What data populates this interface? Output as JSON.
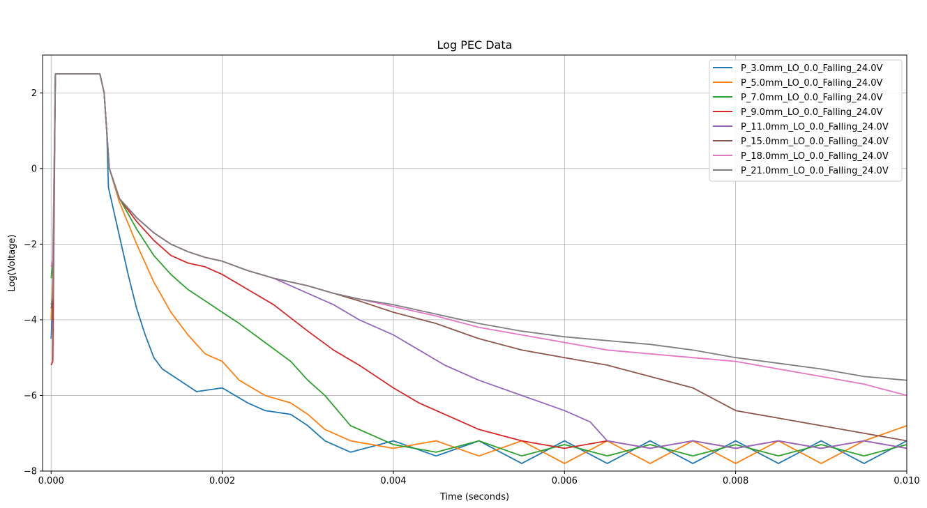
{
  "chart_data": {
    "type": "line",
    "title": "Log PEC Data",
    "xlabel": "Time (seconds)",
    "ylabel": "Log(Voltage)",
    "xlim": [
      -0.0001,
      0.01
    ],
    "ylim": [
      -8,
      3.0
    ],
    "xticks": [
      0.0,
      0.002,
      0.004,
      0.006,
      0.008,
      0.01
    ],
    "xtick_labels": [
      "0.000",
      "0.002",
      "0.004",
      "0.006",
      "0.008",
      "0.010"
    ],
    "yticks": [
      -8,
      -6,
      -4,
      -2,
      0,
      2
    ],
    "ytick_labels": [
      "−8",
      "−6",
      "−4",
      "−2",
      "0",
      "2"
    ],
    "grid": true,
    "legend_position": "top-right",
    "series": [
      {
        "name": "P_3.0mm_LO_0.0_Falling_24.0V",
        "color": "#1f77b4",
        "x": [
          0,
          2e-05,
          5e-05,
          0.0003,
          0.00057,
          0.00062,
          0.00065,
          0.00067,
          0.0007,
          0.0008,
          0.0009,
          0.001,
          0.0011,
          0.0012,
          0.0013,
          0.0015,
          0.0017,
          0.002,
          0.0023,
          0.0025,
          0.0028,
          0.003,
          0.0032,
          0.0035,
          0.004,
          0.0045,
          0.005,
          0.0055,
          0.006,
          0.0065,
          0.007,
          0.0075,
          0.008,
          0.0085,
          0.009,
          0.0095,
          0.01
        ],
        "y": [
          -4.5,
          -3.5,
          2.5,
          2.5,
          2.5,
          2.0,
          1.0,
          -0.5,
          -0.8,
          -1.8,
          -2.8,
          -3.7,
          -4.4,
          -5.0,
          -5.3,
          -5.6,
          -5.9,
          -5.8,
          -6.2,
          -6.4,
          -6.5,
          -6.8,
          -7.2,
          -7.5,
          -7.2,
          -7.6,
          -7.2,
          -7.8,
          -7.2,
          -7.8,
          -7.2,
          -7.8,
          -7.2,
          -7.8,
          -7.2,
          -7.8,
          -7.2
        ]
      },
      {
        "name": "P_5.0mm_LO_0.0_Falling_24.0V",
        "color": "#ff7f0e",
        "x": [
          0,
          2e-05,
          5e-05,
          0.0003,
          0.00057,
          0.00062,
          0.00065,
          0.00068,
          0.0008,
          0.001,
          0.0012,
          0.0014,
          0.0016,
          0.0018,
          0.002,
          0.0022,
          0.0025,
          0.0028,
          0.003,
          0.0032,
          0.0035,
          0.004,
          0.0045,
          0.005,
          0.0055,
          0.006,
          0.0065,
          0.007,
          0.0075,
          0.008,
          0.0085,
          0.009,
          0.0095,
          0.01
        ],
        "y": [
          -4.0,
          -3.0,
          2.5,
          2.5,
          2.5,
          2.0,
          1.0,
          0.0,
          -0.9,
          -2.0,
          -3.0,
          -3.8,
          -4.4,
          -4.9,
          -5.1,
          -5.6,
          -6.0,
          -6.2,
          -6.5,
          -6.9,
          -7.2,
          -7.4,
          -7.2,
          -7.6,
          -7.2,
          -7.8,
          -7.2,
          -7.8,
          -7.2,
          -7.8,
          -7.2,
          -7.8,
          -7.2,
          -6.8
        ]
      },
      {
        "name": "P_7.0mm_LO_0.0_Falling_24.0V",
        "color": "#2ca02c",
        "x": [
          0,
          2e-05,
          5e-05,
          0.0003,
          0.00057,
          0.00062,
          0.00065,
          0.00068,
          0.0008,
          0.001,
          0.0012,
          0.0014,
          0.0016,
          0.0018,
          0.002,
          0.0022,
          0.0025,
          0.0028,
          0.003,
          0.0032,
          0.0035,
          0.004,
          0.0045,
          0.005,
          0.0055,
          0.006,
          0.0065,
          0.007,
          0.0075,
          0.008,
          0.0085,
          0.009,
          0.0095,
          0.01
        ],
        "y": [
          -2.9,
          -2.5,
          2.5,
          2.5,
          2.5,
          2.0,
          1.0,
          0.0,
          -0.8,
          -1.6,
          -2.3,
          -2.8,
          -3.2,
          -3.5,
          -3.8,
          -4.1,
          -4.6,
          -5.1,
          -5.6,
          -6.0,
          -6.8,
          -7.3,
          -7.5,
          -7.2,
          -7.6,
          -7.3,
          -7.6,
          -7.3,
          -7.6,
          -7.3,
          -7.6,
          -7.3,
          -7.6,
          -7.3
        ]
      },
      {
        "name": "P_9.0mm_LO_0.0_Falling_24.0V",
        "color": "#d62728",
        "x": [
          0,
          2e-05,
          5e-05,
          0.0003,
          0.00057,
          0.00062,
          0.00065,
          0.00068,
          0.0008,
          0.001,
          0.0012,
          0.0014,
          0.0016,
          0.0018,
          0.002,
          0.0023,
          0.0026,
          0.003,
          0.0033,
          0.0036,
          0.004,
          0.0043,
          0.0046,
          0.005,
          0.0055,
          0.006,
          0.0065,
          0.007,
          0.0075,
          0.008,
          0.0085,
          0.009,
          0.0095,
          0.01
        ],
        "y": [
          -5.2,
          -5.1,
          2.5,
          2.5,
          2.5,
          2.0,
          1.0,
          0.0,
          -0.8,
          -1.4,
          -1.9,
          -2.3,
          -2.5,
          -2.6,
          -2.8,
          -3.2,
          -3.6,
          -4.3,
          -4.8,
          -5.2,
          -5.8,
          -6.2,
          -6.5,
          -6.9,
          -7.2,
          -7.4,
          -7.2,
          -7.4,
          -7.2,
          -7.4,
          -7.2,
          -7.4,
          -7.2,
          -7.4
        ]
      },
      {
        "name": "P_11.0mm_LO_0.0_Falling_24.0V",
        "color": "#9467bd",
        "x": [
          0,
          2e-05,
          5e-05,
          0.0003,
          0.00057,
          0.00062,
          0.00065,
          0.00068,
          0.0008,
          0.001,
          0.0012,
          0.0014,
          0.0016,
          0.0018,
          0.002,
          0.0023,
          0.0026,
          0.003,
          0.0033,
          0.0036,
          0.004,
          0.0043,
          0.0046,
          0.005,
          0.0055,
          0.006,
          0.0063,
          0.0065,
          0.007,
          0.0075,
          0.008,
          0.0085,
          0.009,
          0.0095,
          0.01
        ],
        "y": [
          -3.7,
          -3.5,
          2.5,
          2.5,
          2.5,
          2.0,
          1.0,
          0.0,
          -0.8,
          -1.3,
          -1.7,
          -2.0,
          -2.2,
          -2.35,
          -2.45,
          -2.7,
          -2.9,
          -3.3,
          -3.6,
          -4.0,
          -4.4,
          -4.8,
          -5.2,
          -5.6,
          -6.0,
          -6.4,
          -6.7,
          -7.2,
          -7.4,
          -7.2,
          -7.4,
          -7.2,
          -7.4,
          -7.2,
          -7.4
        ]
      },
      {
        "name": "P_15.0mm_LO_0.0_Falling_24.0V",
        "color": "#8c564b",
        "x": [
          0,
          2e-05,
          5e-05,
          0.0003,
          0.00057,
          0.00062,
          0.00065,
          0.00068,
          0.0008,
          0.001,
          0.0012,
          0.0014,
          0.0016,
          0.0018,
          0.002,
          0.0023,
          0.0026,
          0.003,
          0.0033,
          0.0036,
          0.004,
          0.0045,
          0.005,
          0.0055,
          0.006,
          0.0065,
          0.007,
          0.0075,
          0.008,
          0.0085,
          0.009,
          0.0095,
          0.01
        ],
        "y": [
          -3.7,
          -3.5,
          2.5,
          2.5,
          2.5,
          2.0,
          1.0,
          0.0,
          -0.8,
          -1.3,
          -1.7,
          -2.0,
          -2.2,
          -2.35,
          -2.45,
          -2.7,
          -2.9,
          -3.1,
          -3.3,
          -3.5,
          -3.8,
          -4.1,
          -4.5,
          -4.8,
          -5.0,
          -5.2,
          -5.5,
          -5.8,
          -6.4,
          -6.6,
          -6.8,
          -7.0,
          -7.2
        ]
      },
      {
        "name": "P_18.0mm_LO_0.0_Falling_24.0V",
        "color": "#e377c2",
        "x": [
          0,
          2e-05,
          5e-05,
          0.0003,
          0.00057,
          0.00062,
          0.00065,
          0.00068,
          0.0008,
          0.001,
          0.0012,
          0.0014,
          0.0016,
          0.0018,
          0.002,
          0.0023,
          0.0026,
          0.003,
          0.0033,
          0.0036,
          0.004,
          0.0045,
          0.005,
          0.0055,
          0.006,
          0.0065,
          0.007,
          0.0075,
          0.008,
          0.0085,
          0.009,
          0.0095,
          0.01
        ],
        "y": [
          -2.6,
          -2.4,
          2.5,
          2.5,
          2.5,
          2.0,
          1.0,
          0.0,
          -0.8,
          -1.3,
          -1.7,
          -2.0,
          -2.2,
          -2.35,
          -2.45,
          -2.7,
          -2.9,
          -3.1,
          -3.3,
          -3.45,
          -3.65,
          -3.9,
          -4.2,
          -4.4,
          -4.6,
          -4.8,
          -4.9,
          -5.0,
          -5.1,
          -5.3,
          -5.5,
          -5.7,
          -6.0
        ]
      },
      {
        "name": "P_21.0mm_LO_0.0_Falling_24.0V",
        "color": "#7f7f7f",
        "x": [
          0,
          2e-05,
          5e-05,
          0.0003,
          0.00057,
          0.00062,
          0.00065,
          0.00068,
          0.0008,
          0.001,
          0.0012,
          0.0014,
          0.0016,
          0.0018,
          0.002,
          0.0023,
          0.0026,
          0.003,
          0.0033,
          0.0036,
          0.004,
          0.0045,
          0.005,
          0.0055,
          0.006,
          0.0065,
          0.007,
          0.0075,
          0.008,
          0.0085,
          0.009,
          0.0095,
          0.01
        ],
        "y": [
          -3.6,
          -3.4,
          2.5,
          2.5,
          2.5,
          2.0,
          1.0,
          0.0,
          -0.8,
          -1.3,
          -1.7,
          -2.0,
          -2.2,
          -2.35,
          -2.45,
          -2.7,
          -2.9,
          -3.1,
          -3.3,
          -3.45,
          -3.6,
          -3.85,
          -4.1,
          -4.3,
          -4.45,
          -4.55,
          -4.65,
          -4.8,
          -5.0,
          -5.15,
          -5.3,
          -5.5,
          -5.6
        ]
      }
    ]
  }
}
